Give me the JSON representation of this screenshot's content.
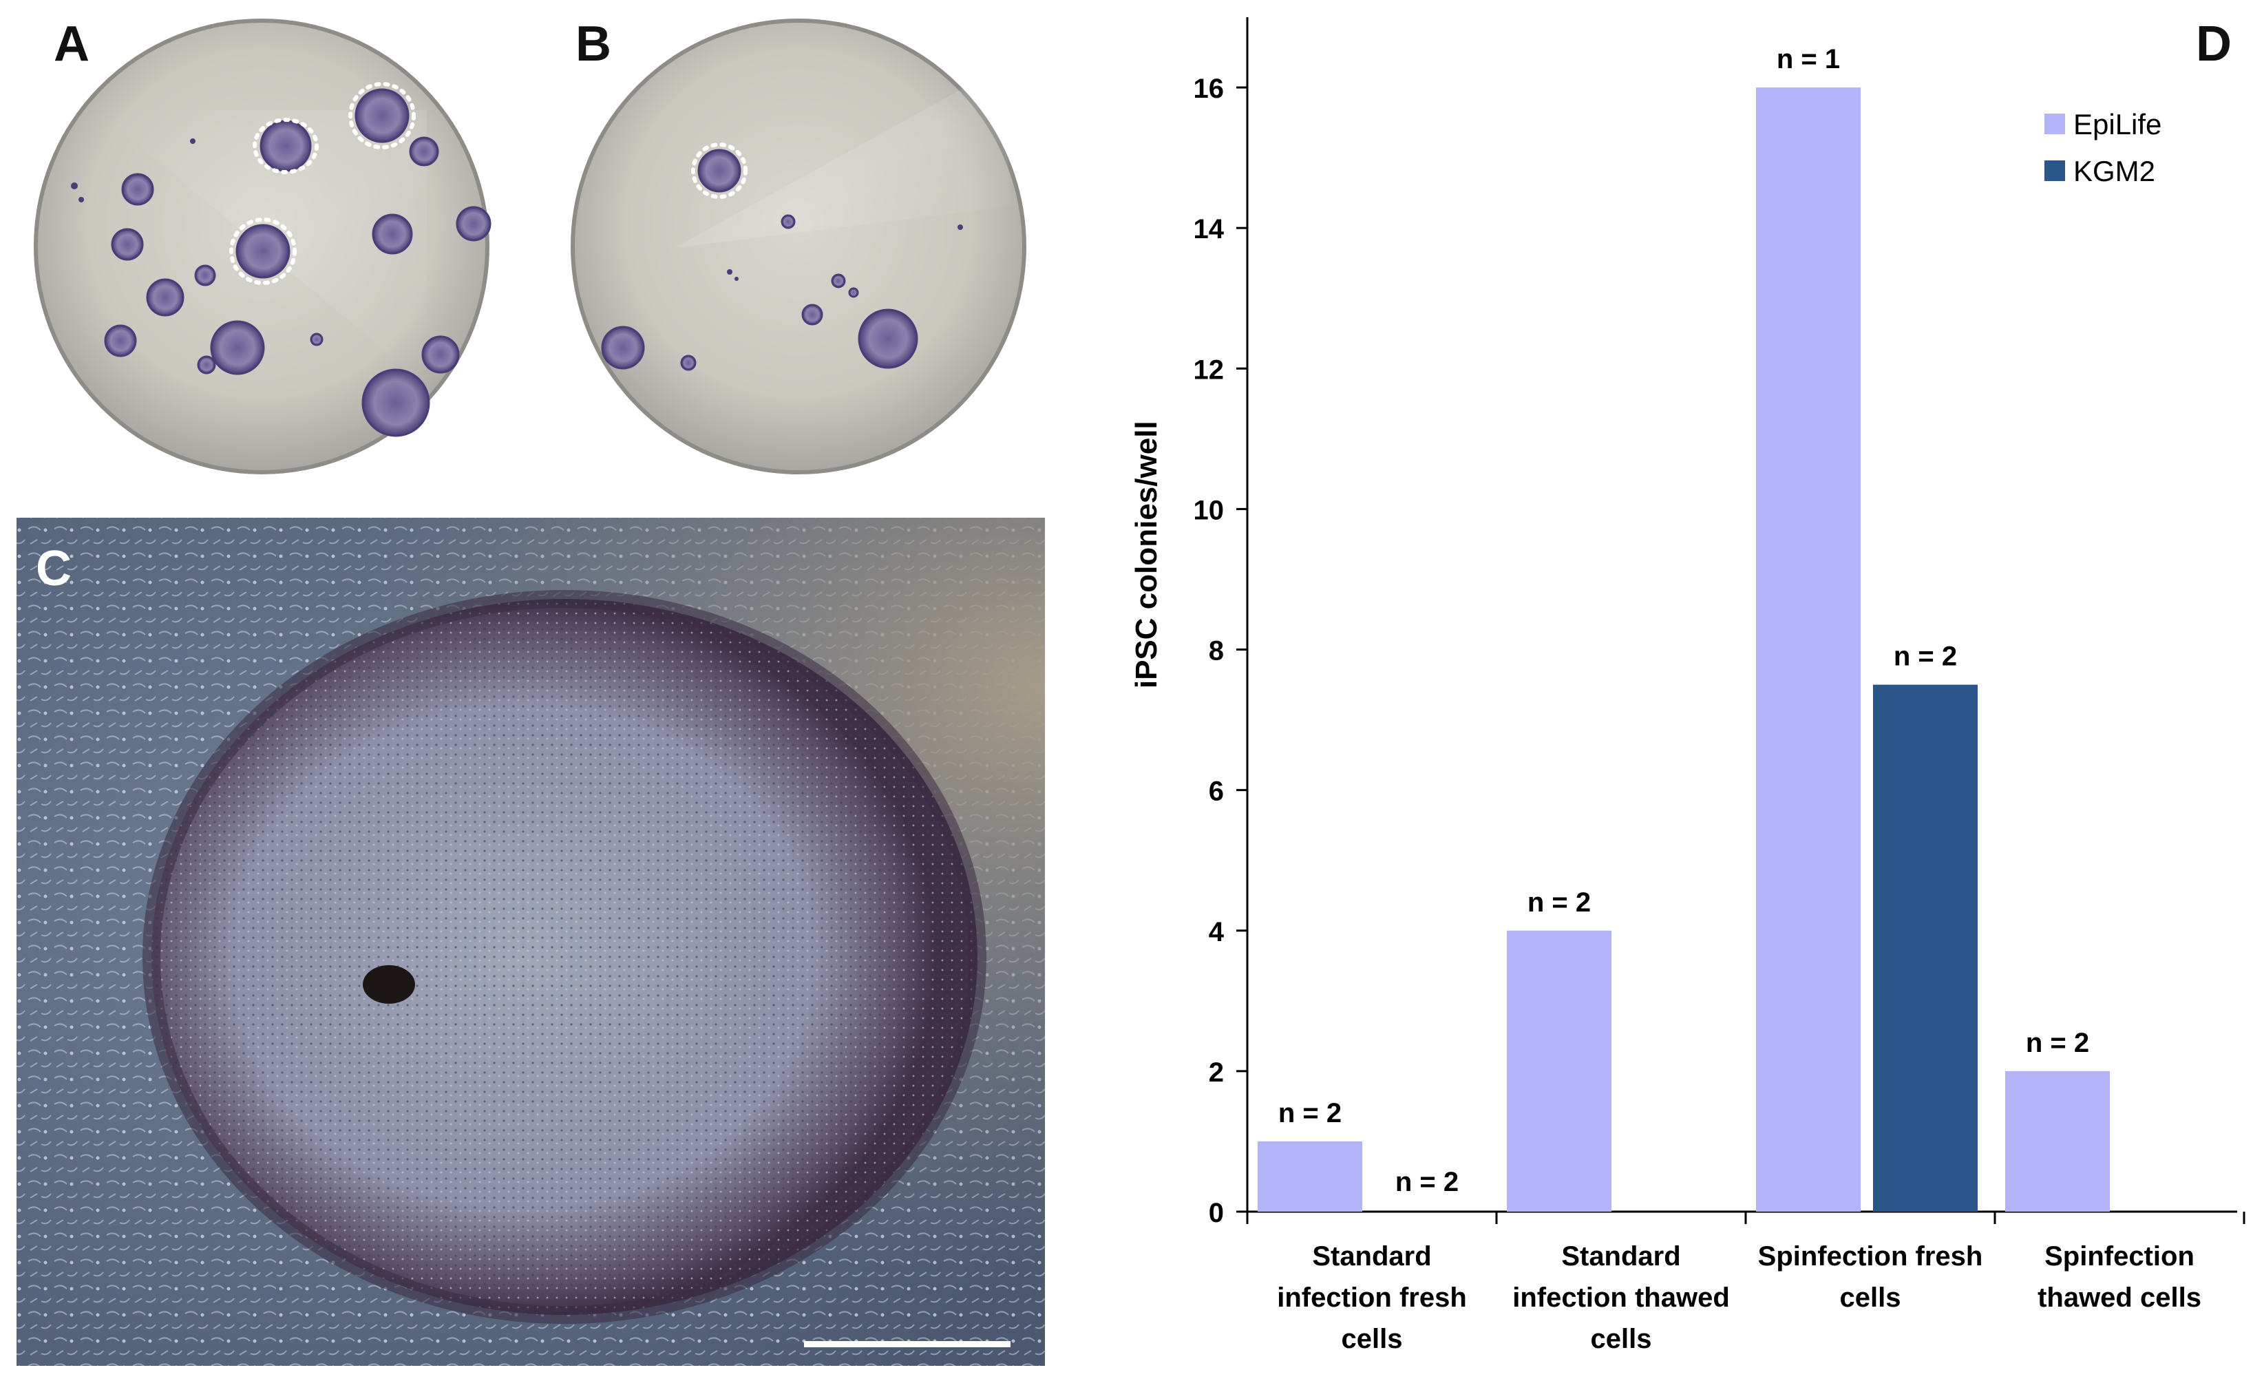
{
  "panels": {
    "a": "A",
    "b": "B",
    "c": "C",
    "d": "D"
  },
  "images": {
    "dish_a": "culture dish with stained iPSC colonies",
    "dish_b": "culture dish with stained iPSC colonies",
    "micrograph_c": "phase-contrast micrograph of an iPSC colony"
  },
  "colors": {
    "epilife": "#b3b3fa",
    "kgm2": "#2a568a",
    "stain": "#5b4f86",
    "axis": "#000000"
  },
  "chart_data": {
    "type": "bar",
    "title": "",
    "xlabel": "",
    "ylabel": "iPSC colonies/well",
    "ylim": [
      0,
      17
    ],
    "yticks": [
      0,
      2,
      4,
      6,
      8,
      10,
      12,
      14,
      16
    ],
    "ytick_labels": [
      "0",
      "2",
      "4",
      "6",
      "8",
      "10",
      "12",
      "14",
      "16"
    ],
    "categories": [
      [
        "Standard",
        "infection fresh",
        "cells"
      ],
      [
        "Standard",
        "infection thawed",
        "cells"
      ],
      [
        "Spinfection fresh",
        "cells"
      ],
      [
        "Spinfection",
        "thawed cells"
      ]
    ],
    "series": [
      {
        "name": "EpiLife",
        "values": [
          1,
          4,
          16,
          2
        ],
        "annotations": [
          "n = 2",
          "n = 2",
          "n = 1",
          "n = 2"
        ]
      },
      {
        "name": "KGM2",
        "values": [
          0,
          null,
          7.5,
          null
        ],
        "annotations": [
          "n = 2",
          "",
          "n = 2",
          ""
        ]
      }
    ],
    "legend_position": "top-right",
    "grid": false
  }
}
